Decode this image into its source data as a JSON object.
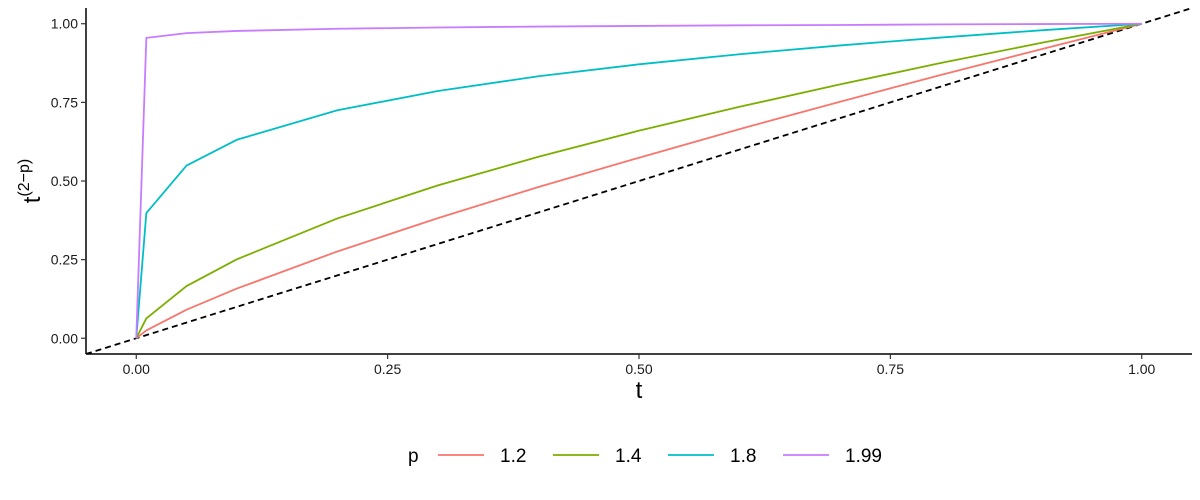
{
  "chart_data": {
    "type": "line",
    "xlabel": "t",
    "ylabel_base": "t",
    "ylabel_superscript": "(2−p)",
    "xlim": [
      -0.05,
      1.05
    ],
    "ylim": [
      -0.05,
      1.05
    ],
    "x_ticks": [
      0,
      0.25,
      0.5,
      0.75,
      1.0
    ],
    "x_tick_labels": [
      "0.00",
      "0.25",
      "0.50",
      "0.75",
      "1.00"
    ],
    "y_ticks": [
      0,
      0.25,
      0.5,
      0.75,
      1.0
    ],
    "y_tick_labels": [
      "0.00",
      "0.25",
      "0.50",
      "0.75",
      "1.00"
    ],
    "grid": false,
    "legend_placement": "bottom",
    "legend_title": "p",
    "function": "t^(2-p)",
    "x_grid": [
      0,
      0.01,
      0.05,
      0.1,
      0.2,
      0.3,
      0.4,
      0.5,
      0.6,
      0.7,
      0.8,
      0.9,
      1.0
    ],
    "series": [
      {
        "name": "1.2",
        "color": "#F8766D",
        "y": [
          0,
          0.025,
          0.091,
          0.158,
          0.276,
          0.382,
          0.481,
          0.574,
          0.665,
          0.752,
          0.837,
          0.919,
          1.0
        ]
      },
      {
        "name": "1.4",
        "color": "#7CAE00",
        "y": [
          0,
          0.063,
          0.166,
          0.251,
          0.381,
          0.486,
          0.577,
          0.66,
          0.736,
          0.807,
          0.875,
          0.939,
          1.0
        ]
      },
      {
        "name": "1.8",
        "color": "#00BFC4",
        "y": [
          0,
          0.398,
          0.549,
          0.631,
          0.725,
          0.786,
          0.833,
          0.871,
          0.903,
          0.931,
          0.956,
          0.979,
          1.0
        ]
      },
      {
        "name": "1.99",
        "color": "#C77CFF",
        "y": [
          0,
          0.955,
          0.97,
          0.977,
          0.984,
          0.988,
          0.991,
          0.993,
          0.995,
          0.996,
          0.998,
          0.999,
          1.0
        ]
      }
    ],
    "reference_line": {
      "type": "identity",
      "style": "dashed",
      "color": "#000000"
    }
  }
}
